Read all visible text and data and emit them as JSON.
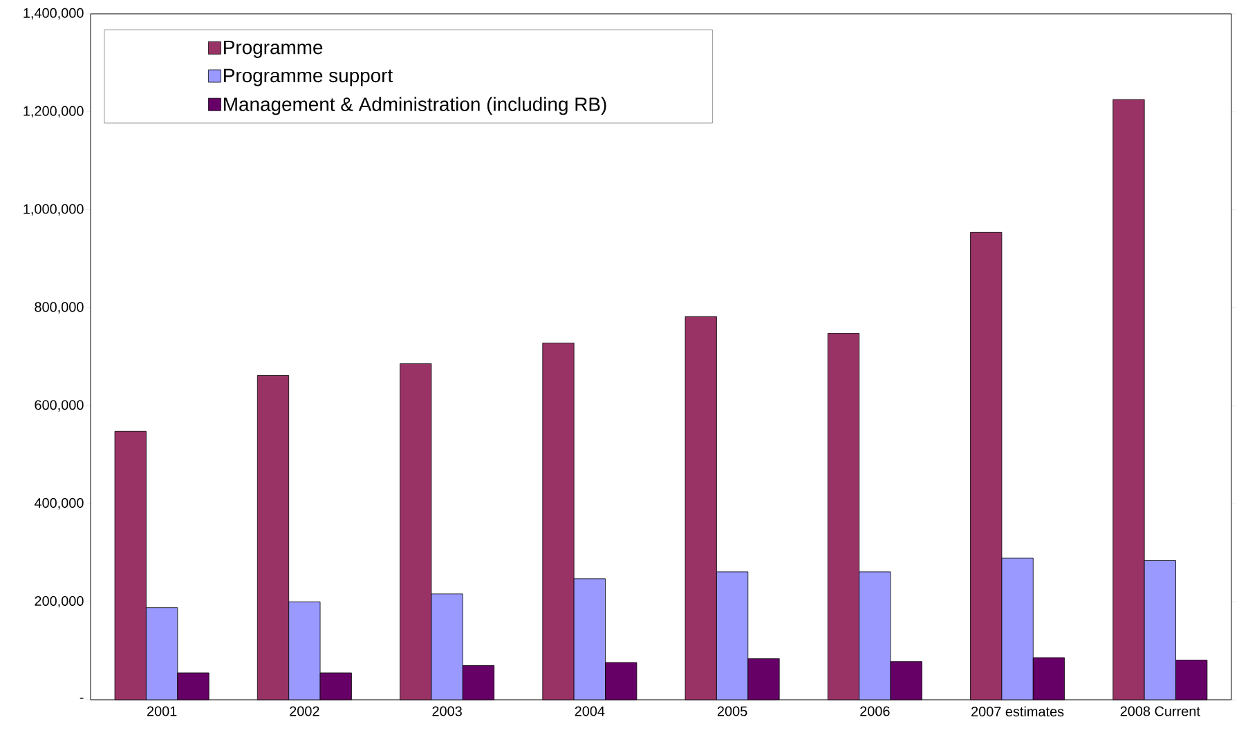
{
  "chart_data": {
    "type": "bar",
    "categories": [
      "2001",
      "2002",
      "2003",
      "2004",
      "2005",
      "2006",
      "2007 estimates",
      "2008 Current"
    ],
    "series": [
      {
        "name": "Programme",
        "color": "#993366",
        "values": [
          548000,
          662000,
          686000,
          728000,
          782000,
          748000,
          954000,
          1225000
        ]
      },
      {
        "name": "Programme support",
        "color": "#9999ff",
        "values": [
          188000,
          200000,
          216000,
          247000,
          261000,
          261000,
          289000,
          284000
        ]
      },
      {
        "name": "Management & Administration (including RB)",
        "color": "#660066",
        "values": [
          55000,
          55000,
          70000,
          76000,
          84000,
          78000,
          86000,
          81000
        ]
      }
    ],
    "ylim": [
      0,
      1400000
    ],
    "yticks": [
      {
        "value": 0,
        "label": "-"
      },
      {
        "value": 200000,
        "label": "200,000"
      },
      {
        "value": 400000,
        "label": "400,000"
      },
      {
        "value": 600000,
        "label": "600,000"
      },
      {
        "value": 800000,
        "label": "800,000"
      },
      {
        "value": 1000000,
        "label": "1,000,000"
      },
      {
        "value": 1200000,
        "label": "1,200,000"
      },
      {
        "value": 1400000,
        "label": "1,400,000"
      }
    ],
    "legend": "top left"
  }
}
